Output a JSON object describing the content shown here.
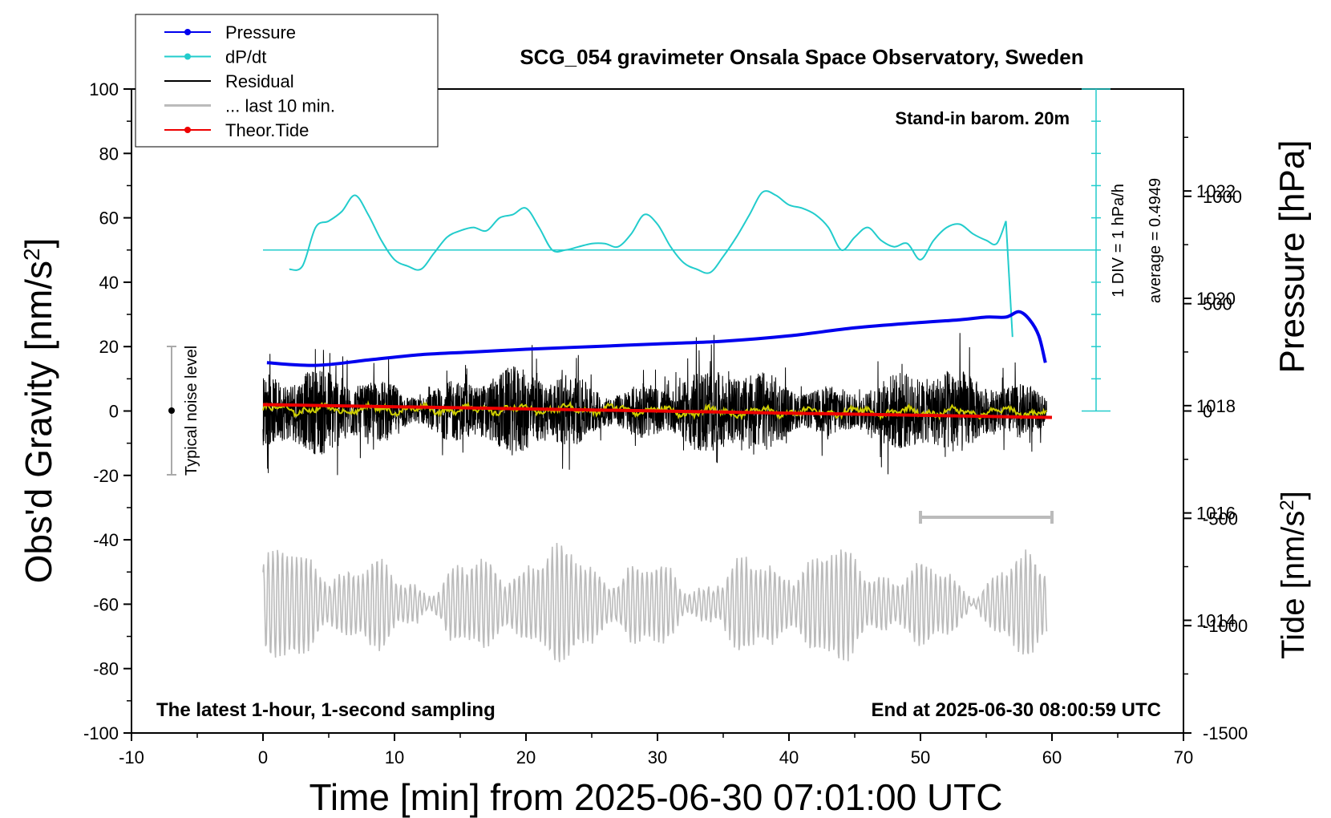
{
  "chart_data": {
    "type": "line",
    "title": "SCG_054 gravimeter Onsala Space Observatory, Sweden",
    "xlabel": "Time [min] from 2025-06-30 07:01:00 UTC",
    "ylabel_left": "Obs'd Gravity [nm/s",
    "ylabel_left_sup": "2",
    "ylabel_left_end": "]",
    "ylabel_right_top": "Pressure [hPa]",
    "ylabel_right_bottom": "Tide [nm/s",
    "ylabel_right_bottom_sup": "2",
    "ylabel_right_bottom_end": "]",
    "xlim": [
      -10,
      70
    ],
    "ylim_left": [
      -100,
      100
    ],
    "ylim_pressure": [
      1011.9,
      1023.9
    ],
    "ylim_tide": [
      -1500,
      1500
    ],
    "x_ticks": [
      "-10",
      "0",
      "10",
      "20",
      "30",
      "40",
      "50",
      "60",
      "70"
    ],
    "y_ticks_left": [
      "-100",
      "-80",
      "-60",
      "-40",
      "-20",
      "0",
      "20",
      "40",
      "60",
      "80",
      "100"
    ],
    "y_ticks_pressure": [
      "1014",
      "1016",
      "1018",
      "1020",
      "1022"
    ],
    "y_ticks_tide": [
      "-1500",
      "-1000",
      "-500",
      "0",
      "500",
      "1000"
    ],
    "legend": {
      "placement": "top-left",
      "entries": [
        {
          "label": "Pressure",
          "color": "#0000ee",
          "marker": true
        },
        {
          "label": "dP/dt",
          "color": "#22cccc",
          "marker": true
        },
        {
          "label": "Residual",
          "color": "#000000",
          "marker": false
        },
        {
          "label": "... last 10 min.",
          "color": "#bbbbbb",
          "marker": false
        },
        {
          "label": "Theor.Tide",
          "color": "#ee0000",
          "marker": true
        }
      ]
    },
    "annotations": {
      "barometer": "Stand-in barom. 20m",
      "scale_div": "1 DIV = 1 hPa/h",
      "average": "average = 0.4949",
      "noise": "Typical noise level",
      "bottom_left": "The latest 1-hour, 1-second sampling",
      "bottom_right": "End at 2025-06-30 08:00:59 UTC"
    },
    "series": [
      {
        "name": "Pressure",
        "color": "#0000ee",
        "x": [
          0.3,
          4,
          8,
          12,
          16,
          20,
          25,
          30,
          35,
          40,
          45,
          50,
          53,
          55,
          56.5,
          57.5,
          58.3,
          59,
          59.5
        ],
        "values": [
          1018.8,
          1018.75,
          1018.85,
          1018.95,
          1019.0,
          1019.05,
          1019.1,
          1019.15,
          1019.2,
          1019.3,
          1019.45,
          1019.55,
          1019.6,
          1019.65,
          1019.65,
          1019.75,
          1019.6,
          1019.3,
          1018.8
        ]
      },
      {
        "name": "dP/dt",
        "color": "#22cccc",
        "x": [
          2,
          3,
          4,
          5,
          6,
          7,
          8,
          9,
          10,
          11,
          12,
          13,
          14,
          15,
          16,
          17,
          18,
          19,
          20,
          21,
          22,
          23,
          24,
          25,
          26,
          27,
          28,
          29,
          30,
          31,
          32,
          33,
          34,
          35,
          36,
          37,
          38,
          39,
          40,
          41,
          42,
          43,
          44,
          45,
          46,
          47,
          48,
          49,
          50,
          51,
          52,
          53,
          54,
          55,
          55.8,
          56.5,
          57.0
        ],
        "values": [
          44,
          45,
          57,
          59,
          62,
          67,
          61,
          53,
          47,
          45,
          44,
          49,
          54,
          56,
          57,
          56,
          60,
          61,
          63,
          57,
          50,
          50,
          51,
          52,
          52,
          51,
          55,
          61,
          58,
          51,
          46,
          44,
          43,
          48,
          54,
          61,
          68,
          67,
          64,
          63,
          61,
          57,
          50,
          54,
          57,
          53,
          51,
          52,
          47,
          53,
          57,
          58,
          55,
          53,
          52,
          59,
          23
        ]
      },
      {
        "name": "Residual",
        "color": "#000000",
        "x_range": [
          0,
          59.6
        ],
        "y_center": 0
      },
      {
        "name": "... last 10 min.",
        "color": "#bbbbbb",
        "x_range": [
          0,
          59.6
        ],
        "y_center": -60
      },
      {
        "name": "Theor.Tide",
        "color": "#ee0000",
        "x": [
          0,
          60
        ],
        "values": [
          30,
          -30
        ]
      }
    ]
  }
}
